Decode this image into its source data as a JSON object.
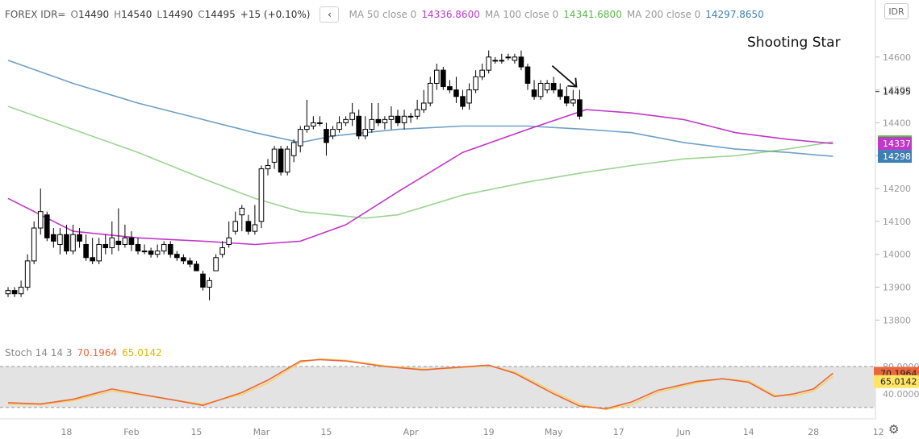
{
  "legend": {
    "symbol": "FOREX IDR=",
    "o_label": "O",
    "o_value": "14490",
    "h_label": "H",
    "h_value": "14540",
    "l_label": "L",
    "l_value": "14490",
    "c_label": "C",
    "c_value": "14495",
    "change": "+15 (+0.10%)",
    "collapse_icon": "‹",
    "ma50_label": "MA 50 close 0",
    "ma50_value": "14336.8600",
    "ma100_label": "MA 100 close 0",
    "ma100_value": "14341.6800",
    "ma200_label": "MA 200 close 0",
    "ma200_value": "14297.8650"
  },
  "currency_button": "IDR",
  "annotation_text": "Shooting Star",
  "colors": {
    "ma50": "#c038c8",
    "ma100": "#5ab84a",
    "ma200": "#3e7fb3",
    "stoch_k": "#e8673c",
    "stoch_d": "#f5d36a",
    "candle": "#000000"
  },
  "stoch": {
    "label": "Stoch 14 14 3",
    "k_value": "70.1964",
    "d_value": "65.0142",
    "axis_ticks": [
      "80.0000",
      "40.0000"
    ],
    "upper_band": 80,
    "lower_band": 20,
    "ylim": [
      8,
      100
    ],
    "k_badge": "70.1964",
    "d_badge": "65.0142"
  },
  "chart_data": {
    "type": "candlestick",
    "ylim": [
      13720,
      14700
    ],
    "y_ticks": [
      14600,
      14500,
      14400,
      14300,
      14200,
      14100,
      14000,
      13900,
      13800
    ],
    "price_label": "14495",
    "ma_badges": [
      {
        "text": "14342",
        "value": 14342,
        "color": "#5ab84a"
      },
      {
        "text": "14337",
        "value": 14337,
        "color": "#c038c8"
      },
      {
        "text": "14298",
        "value": 14298,
        "color": "#3e7fb3"
      }
    ],
    "x_tick_labels": [
      {
        "label": "18",
        "bar": 9
      },
      {
        "label": "Feb",
        "bar": 19
      },
      {
        "label": "15",
        "bar": 29
      },
      {
        "label": "Mar",
        "bar": 39
      },
      {
        "label": "15",
        "bar": 49
      },
      {
        "label": "Apr",
        "bar": 62
      },
      {
        "label": "19",
        "bar": 74
      },
      {
        "label": "May",
        "bar": 84
      },
      {
        "label": "17",
        "bar": 94
      },
      {
        "label": "Jun",
        "bar": 104
      },
      {
        "label": "14",
        "bar": 114
      },
      {
        "label": "28",
        "bar": 124
      },
      {
        "label": "12",
        "bar": 134
      }
    ],
    "candles": [
      [
        13880,
        13890,
        13870,
        13900
      ],
      [
        13890,
        13880,
        13870,
        13900
      ],
      [
        13880,
        13900,
        13870,
        13920
      ],
      [
        13900,
        13980,
        13890,
        14000
      ],
      [
        13980,
        14080,
        13970,
        14100
      ],
      [
        14080,
        14130,
        14060,
        14200
      ],
      [
        14120,
        14050,
        14040,
        14130
      ],
      [
        14060,
        14040,
        14020,
        14080
      ],
      [
        14030,
        14060,
        14000,
        14080
      ],
      [
        14060,
        14010,
        14000,
        14090
      ],
      [
        14010,
        14060,
        14000,
        14090
      ],
      [
        14060,
        14040,
        14020,
        14080
      ],
      [
        14030,
        13990,
        13980,
        14060
      ],
      [
        13990,
        13980,
        13970,
        14050
      ],
      [
        13980,
        14030,
        13970,
        14050
      ],
      [
        14030,
        14020,
        14000,
        14060
      ],
      [
        14020,
        14050,
        14000,
        14100
      ],
      [
        14040,
        14030,
        14010,
        14140
      ],
      [
        14030,
        14050,
        14020,
        14090
      ],
      [
        14050,
        14030,
        14010,
        14070
      ],
      [
        14030,
        14010,
        14000,
        14050
      ],
      [
        14010,
        14010,
        14000,
        14030
      ],
      [
        14010,
        14000,
        13990,
        14020
      ],
      [
        14000,
        14010,
        13990,
        14030
      ],
      [
        14010,
        14030,
        14000,
        14040
      ],
      [
        14030,
        14000,
        13990,
        14040
      ],
      [
        14000,
        13990,
        13980,
        14010
      ],
      [
        13990,
        13980,
        13970,
        14000
      ],
      [
        13980,
        13970,
        13960,
        13990
      ],
      [
        13970,
        13950,
        13950,
        13980
      ],
      [
        13940,
        13900,
        13890,
        13950
      ],
      [
        13900,
        13920,
        13860,
        13930
      ],
      [
        13950,
        13990,
        13950,
        14000
      ],
      [
        14000,
        14020,
        13990,
        14040
      ],
      [
        14030,
        14050,
        14020,
        14100
      ],
      [
        14070,
        14100,
        14060,
        14130
      ],
      [
        14120,
        14140,
        14070,
        14150
      ],
      [
        14100,
        14070,
        14060,
        14120
      ],
      [
        14070,
        14090,
        14060,
        14150
      ],
      [
        14100,
        14260,
        14080,
        14270
      ],
      [
        14260,
        14270,
        14240,
        14290
      ],
      [
        14280,
        14320,
        14260,
        14330
      ],
      [
        14320,
        14250,
        14240,
        14330
      ],
      [
        14250,
        14320,
        14240,
        14330
      ],
      [
        14300,
        14340,
        14280,
        14350
      ],
      [
        14330,
        14380,
        14310,
        14390
      ],
      [
        14380,
        14390,
        14370,
        14470
      ],
      [
        14390,
        14400,
        14380,
        14420
      ],
      [
        14400,
        14400,
        14390,
        14420
      ],
      [
        14380,
        14340,
        14300,
        14400
      ],
      [
        14360,
        14380,
        14350,
        14390
      ],
      [
        14380,
        14400,
        14370,
        14420
      ],
      [
        14400,
        14410,
        14390,
        14420
      ],
      [
        14410,
        14430,
        14390,
        14460
      ],
      [
        14420,
        14360,
        14350,
        14440
      ],
      [
        14360,
        14380,
        14350,
        14420
      ],
      [
        14380,
        14410,
        14370,
        14460
      ],
      [
        14410,
        14400,
        14390,
        14460
      ],
      [
        14400,
        14410,
        14380,
        14420
      ],
      [
        14410,
        14420,
        14380,
        14450
      ],
      [
        14420,
        14400,
        14390,
        14440
      ],
      [
        14400,
        14420,
        14380,
        14440
      ],
      [
        14420,
        14420,
        14400,
        14430
      ],
      [
        14420,
        14440,
        14410,
        14470
      ],
      [
        14440,
        14460,
        14430,
        14500
      ],
      [
        14460,
        14520,
        14450,
        14540
      ],
      [
        14520,
        14560,
        14500,
        14580
      ],
      [
        14560,
        14510,
        14500,
        14570
      ],
      [
        14510,
        14500,
        14490,
        14530
      ],
      [
        14500,
        14480,
        14460,
        14540
      ],
      [
        14480,
        14450,
        14440,
        14500
      ],
      [
        14460,
        14500,
        14440,
        14520
      ],
      [
        14500,
        14540,
        14490,
        14560
      ],
      [
        14540,
        14560,
        14530,
        14580
      ],
      [
        14560,
        14600,
        14550,
        14620
      ],
      [
        14590,
        14590,
        14580,
        14600
      ],
      [
        14590,
        14590,
        14580,
        14610
      ],
      [
        14600,
        14600,
        14590,
        14610
      ],
      [
        14590,
        14600,
        14580,
        14610
      ],
      [
        14600,
        14570,
        14560,
        14620
      ],
      [
        14570,
        14520,
        14500,
        14580
      ],
      [
        14500,
        14480,
        14470,
        14530
      ],
      [
        14480,
        14520,
        14470,
        14530
      ],
      [
        14500,
        14520,
        14490,
        14530
      ],
      [
        14520,
        14500,
        14490,
        14540
      ],
      [
        14500,
        14480,
        14470,
        14520
      ],
      [
        14480,
        14460,
        14450,
        14510
      ],
      [
        14460,
        14470,
        14450,
        14500
      ],
      [
        14470,
        14420,
        14410,
        14500
      ]
    ],
    "ma50": [
      [
        0,
        14170
      ],
      [
        10,
        14070
      ],
      [
        20,
        14050
      ],
      [
        30,
        14040
      ],
      [
        38,
        14030
      ],
      [
        45,
        14040
      ],
      [
        52,
        14090
      ],
      [
        60,
        14190
      ],
      [
        70,
        14310
      ],
      [
        80,
        14380
      ],
      [
        89,
        14440
      ],
      [
        96,
        14430
      ],
      [
        104,
        14410
      ],
      [
        112,
        14370
      ],
      [
        120,
        14350
      ],
      [
        127,
        14337
      ]
    ],
    "ma100": [
      [
        0,
        14450
      ],
      [
        10,
        14380
      ],
      [
        20,
        14310
      ],
      [
        30,
        14230
      ],
      [
        38,
        14170
      ],
      [
        45,
        14130
      ],
      [
        55,
        14110
      ],
      [
        60,
        14120
      ],
      [
        70,
        14180
      ],
      [
        80,
        14220
      ],
      [
        89,
        14250
      ],
      [
        96,
        14270
      ],
      [
        104,
        14290
      ],
      [
        112,
        14300
      ],
      [
        120,
        14320
      ],
      [
        127,
        14342
      ]
    ],
    "ma200": [
      [
        0,
        14590
      ],
      [
        10,
        14520
      ],
      [
        20,
        14460
      ],
      [
        30,
        14410
      ],
      [
        38,
        14370
      ],
      [
        45,
        14340
      ],
      [
        50,
        14360
      ],
      [
        60,
        14380
      ],
      [
        70,
        14390
      ],
      [
        80,
        14390
      ],
      [
        89,
        14380
      ],
      [
        96,
        14370
      ],
      [
        104,
        14340
      ],
      [
        112,
        14320
      ],
      [
        120,
        14310
      ],
      [
        127,
        14298
      ]
    ],
    "stoch_k": [
      [
        0,
        27
      ],
      [
        5,
        25
      ],
      [
        10,
        32
      ],
      [
        16,
        47
      ],
      [
        20,
        40
      ],
      [
        26,
        30
      ],
      [
        30,
        23
      ],
      [
        36,
        42
      ],
      [
        40,
        60
      ],
      [
        45,
        88
      ],
      [
        48,
        90
      ],
      [
        52,
        88
      ],
      [
        58,
        80
      ],
      [
        64,
        75
      ],
      [
        68,
        78
      ],
      [
        74,
        82
      ],
      [
        78,
        70
      ],
      [
        84,
        40
      ],
      [
        88,
        22
      ],
      [
        92,
        18
      ],
      [
        96,
        28
      ],
      [
        100,
        45
      ],
      [
        106,
        58
      ],
      [
        110,
        62
      ],
      [
        114,
        57
      ],
      [
        118,
        36
      ],
      [
        121,
        40
      ],
      [
        124,
        47
      ],
      [
        127,
        70
      ]
    ],
    "stoch_d": [
      [
        0,
        25
      ],
      [
        5,
        24
      ],
      [
        10,
        30
      ],
      [
        16,
        44
      ],
      [
        20,
        39
      ],
      [
        26,
        30
      ],
      [
        30,
        25
      ],
      [
        36,
        39
      ],
      [
        40,
        56
      ],
      [
        45,
        86
      ],
      [
        48,
        91
      ],
      [
        52,
        89
      ],
      [
        58,
        81
      ],
      [
        64,
        76
      ],
      [
        68,
        77
      ],
      [
        74,
        81
      ],
      [
        78,
        72
      ],
      [
        84,
        43
      ],
      [
        88,
        25
      ],
      [
        92,
        17
      ],
      [
        96,
        24
      ],
      [
        100,
        42
      ],
      [
        106,
        56
      ],
      [
        110,
        62
      ],
      [
        114,
        59
      ],
      [
        118,
        38
      ],
      [
        121,
        37
      ],
      [
        124,
        44
      ],
      [
        127,
        65
      ]
    ]
  }
}
